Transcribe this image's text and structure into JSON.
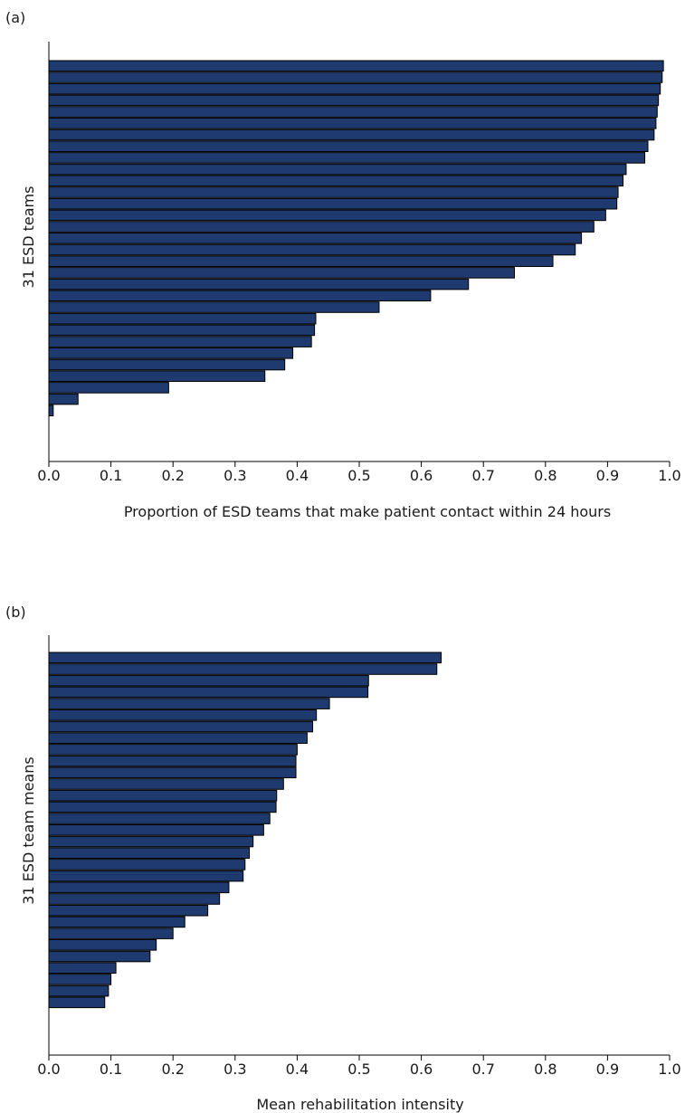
{
  "colors": {
    "bar": "#1f3a6e",
    "bar_edge": "#000000",
    "axis": "#000000"
  },
  "chart_data": [
    {
      "type": "bar",
      "orientation": "horizontal",
      "panel_label": "(a)",
      "xlabel": "Proportion of ESD teams that make patient contact within 24 hours",
      "ylabel": "31 ESD teams",
      "xlim": [
        0,
        1.0
      ],
      "xticks": [
        "0.0",
        "0.1",
        "0.2",
        "0.3",
        "0.4",
        "0.5",
        "0.6",
        "0.7",
        "0.8",
        "0.9",
        "1.0"
      ],
      "grid": false,
      "values": [
        0.99,
        0.988,
        0.985,
        0.982,
        0.98,
        0.978,
        0.975,
        0.965,
        0.96,
        0.93,
        0.925,
        0.917,
        0.915,
        0.897,
        0.878,
        0.858,
        0.848,
        0.812,
        0.75,
        0.676,
        0.615,
        0.532,
        0.43,
        0.428,
        0.423,
        0.393,
        0.38,
        0.348,
        0.193,
        0.047,
        0.007
      ]
    },
    {
      "type": "bar",
      "orientation": "horizontal",
      "panel_label": "(b)",
      "xlabel": "Mean rehabilitation intensity",
      "ylabel": "31 ESD team means",
      "xlim": [
        0,
        1.0
      ],
      "xticks": [
        "0.0",
        "0.1",
        "0.2",
        "0.3",
        "0.4",
        "0.5",
        "0.6",
        "0.7",
        "0.8",
        "0.9",
        "1.0"
      ],
      "grid": false,
      "values": [
        0.632,
        0.625,
        0.515,
        0.514,
        0.452,
        0.431,
        0.425,
        0.416,
        0.4,
        0.398,
        0.398,
        0.378,
        0.367,
        0.366,
        0.356,
        0.346,
        0.329,
        0.323,
        0.316,
        0.313,
        0.29,
        0.275,
        0.256,
        0.219,
        0.2,
        0.173,
        0.163,
        0.108,
        0.1,
        0.096,
        0.09
      ]
    }
  ]
}
